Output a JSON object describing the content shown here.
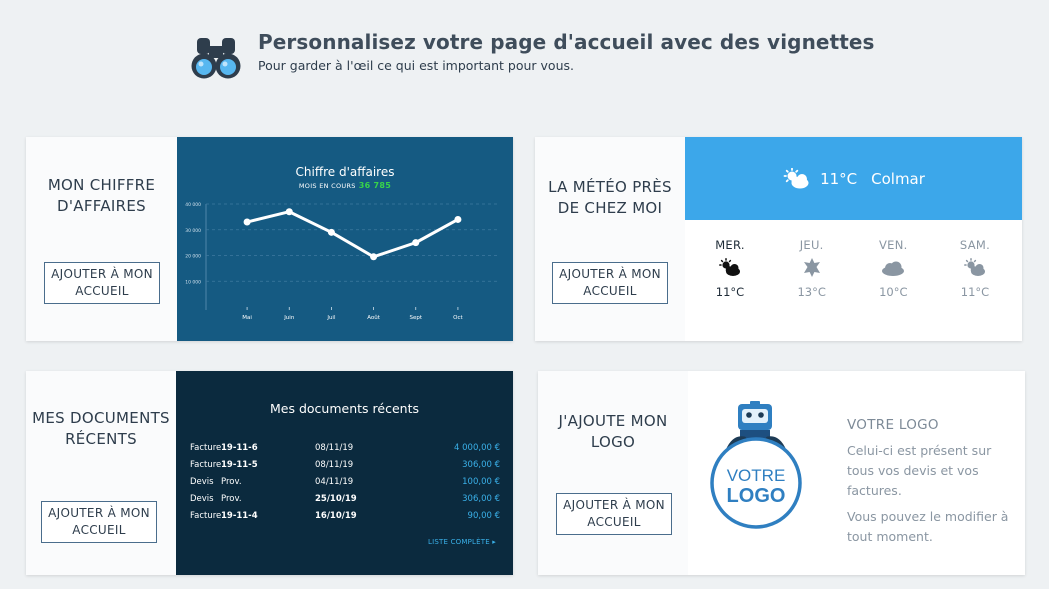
{
  "header": {
    "title": "Personnalisez votre page d'accueil avec des vignettes",
    "subtitle": "Pour garder à l'œil ce qui est important pour vous."
  },
  "add_button_label": "AJOUTER À MON ACCUEIL",
  "cards": {
    "revenue": {
      "title": "MON CHIFFRE D'AFFAIRES",
      "chart_title": "Chiffre d'affaires",
      "chart_subtitle": "MOIS EN COURS",
      "current_value": "36 785"
    },
    "weather": {
      "title": "LA MÉTÉO PRÈS DE CHEZ MOI",
      "current_temp": "11°C",
      "city": "Colmar",
      "days": [
        {
          "name": "MER.",
          "temp": "11°C",
          "icon": "cloud-sun-icon"
        },
        {
          "name": "JEU.",
          "temp": "13°C",
          "icon": "sun-icon"
        },
        {
          "name": "VEN.",
          "temp": "10°C",
          "icon": "cloud-icon"
        },
        {
          "name": "SAM.",
          "temp": "11°C",
          "icon": "cloud-sun-icon"
        }
      ]
    },
    "documents": {
      "title": "MES DOCUMENTS RÉCENTS",
      "panel_title": "Mes documents récents",
      "rows": [
        {
          "type": "Facture",
          "number": "19-11-6",
          "date": "08/11/19",
          "amount": "4 000,00 €"
        },
        {
          "type": "Facture",
          "number": "19-11-5",
          "date": "08/11/19",
          "amount": "306,00 €"
        },
        {
          "type": "Devis",
          "number": "Prov.",
          "date": "04/11/19",
          "amount": "100,00 €"
        },
        {
          "type": "Devis",
          "number": "Prov.",
          "date": "25/10/19",
          "amount": "306,00 €"
        },
        {
          "type": "Facture",
          "number": "19-11-4",
          "date": "16/10/19",
          "amount": "90,00 €"
        }
      ],
      "list_link": "LISTE COMPLÈTE ▸"
    },
    "logo": {
      "title": "J'AJOUTE MON LOGO",
      "badge_line1": "VOTRE",
      "badge_line2": "LOGO",
      "heading": "VOTRE LOGO",
      "description": "Celui-ci est présent sur tous vos devis et vos factures.",
      "description2": "Vous pouvez le modifier à tout moment."
    }
  },
  "chart_data": {
    "type": "line",
    "title": "Chiffre d'affaires",
    "x": [
      "Mai",
      "Juin",
      "Juil",
      "Août",
      "Sept",
      "Oct"
    ],
    "values": [
      33000,
      37000,
      29000,
      19500,
      25000,
      34000
    ],
    "ylim": [
      0,
      40000
    ],
    "yticks": [
      10000,
      20000,
      30000,
      40000
    ],
    "ytick_labels": [
      "10 000",
      "20 000",
      "30 000",
      "40 000"
    ],
    "grid": true,
    "color": "#ffffff"
  }
}
